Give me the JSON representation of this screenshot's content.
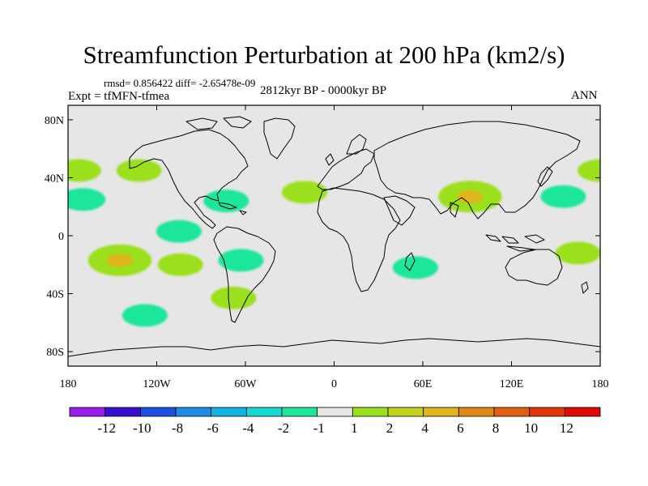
{
  "figure": {
    "title": "Streamfunction Perturbation at 200 hPa (km2/s)",
    "stats": "rmsd= 0.856422 diff= -2.65478e-09",
    "experiment": "Expt = tfMFN-tfmea",
    "period": "2812kyr BP - 0000kyr BP",
    "season": "ANN"
  },
  "map": {
    "lat_ticks": [
      {
        "lat": 80,
        "label": "80N"
      },
      {
        "lat": 40,
        "label": "40N"
      },
      {
        "lat": 0,
        "label": "0"
      },
      {
        "lat": -40,
        "label": "40S"
      },
      {
        "lat": -80,
        "label": "80S"
      }
    ],
    "lon_ticks": [
      {
        "lon": -180,
        "label": "180"
      },
      {
        "lon": -120,
        "label": "120W"
      },
      {
        "lon": -60,
        "label": "60W"
      },
      {
        "lon": 0,
        "label": "0"
      },
      {
        "lon": 60,
        "label": "60E"
      },
      {
        "lon": 120,
        "label": "120E"
      },
      {
        "lon": 180,
        "label": "180"
      }
    ],
    "anomalies": [
      {
        "lon": -173,
        "lat": 45,
        "value": 2
      },
      {
        "lon": 180,
        "lat": 45,
        "value": 2
      },
      {
        "lon": -132,
        "lat": 45,
        "value": 2
      },
      {
        "lon": -170,
        "lat": 25,
        "value": -2
      },
      {
        "lon": -73,
        "lat": 24,
        "value": -2
      },
      {
        "lon": -105,
        "lat": 3,
        "value": -2
      },
      {
        "lon": -63,
        "lat": -17,
        "value": -2
      },
      {
        "lon": -145,
        "lat": -17,
        "value": 4
      },
      {
        "lon": -104,
        "lat": -20,
        "value": 2
      },
      {
        "lon": -68,
        "lat": -43,
        "value": 2
      },
      {
        "lon": -128,
        "lat": -55,
        "value": -2
      },
      {
        "lon": -20,
        "lat": 30,
        "value": 2
      },
      {
        "lon": 92,
        "lat": 27,
        "value": 4
      },
      {
        "lon": 155,
        "lat": 27,
        "value": -2
      },
      {
        "lon": 55,
        "lat": -22,
        "value": -2
      },
      {
        "lon": 165,
        "lat": -12,
        "value": 2
      }
    ]
  },
  "colorbar": {
    "labels": [
      "-12",
      "-10",
      "-8",
      "-6",
      "-4",
      "-2",
      "-1",
      "1",
      "2",
      "4",
      "6",
      "8",
      "10",
      "12"
    ],
    "colors": [
      "#9A1FE6",
      "#3B0FCF",
      "#1F50E0",
      "#1E8CE6",
      "#15B2E6",
      "#18D9D2",
      "#1FE699",
      "#E6E6E6",
      "#9BE01F",
      "#C3D31D",
      "#E0B41B",
      "#E08A15",
      "#E0600F",
      "#E0360A",
      "#E00A05"
    ]
  }
}
